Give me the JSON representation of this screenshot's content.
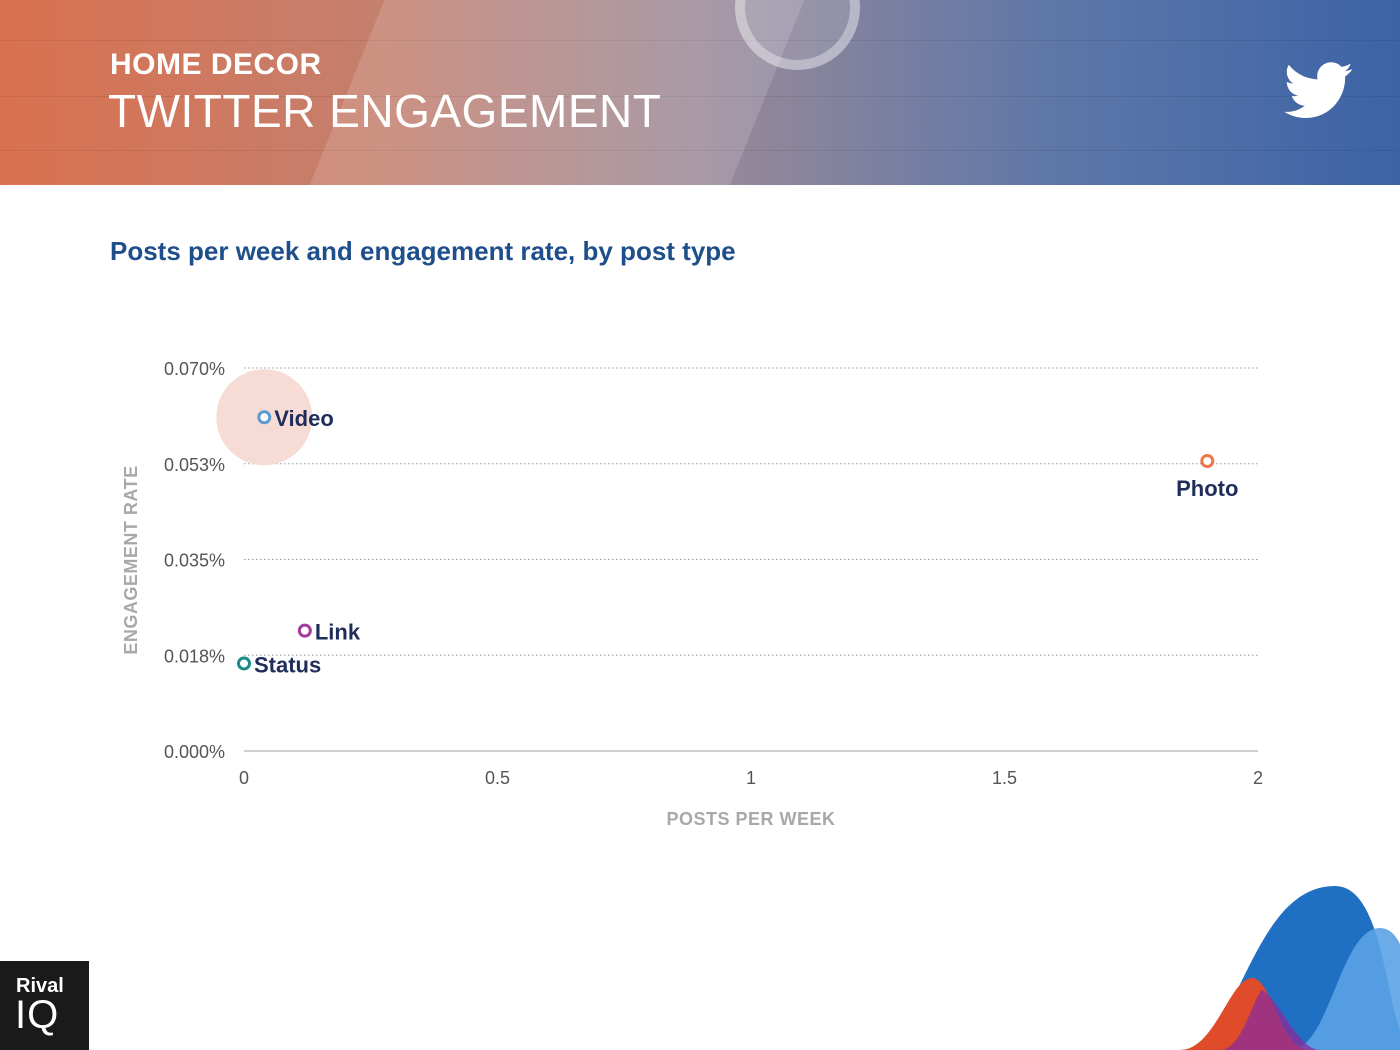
{
  "header": {
    "kicker": "HOME DECOR",
    "headline": "TWITTER ENGAGEMENT",
    "icon": "twitter-bird-icon"
  },
  "subtitle": "Posts per week and engagement rate, by post type",
  "brand": {
    "line1": "Rival",
    "line2": "IQ"
  },
  "colors": {
    "banner_left": "#d9714f",
    "banner_right": "#3c63a6",
    "subtitle": "#1f4f8a",
    "label": "#1f2d5a",
    "highlight": "#f7dcd5"
  },
  "chart_data": {
    "type": "scatter",
    "title": "",
    "xlabel": "POSTS PER WEEK",
    "ylabel": "ENGAGEMENT RATE",
    "xlim": [
      0,
      2
    ],
    "ylim": [
      0,
      0.07
    ],
    "x_ticks": [
      0,
      0.5,
      1,
      1.5,
      2
    ],
    "x_tick_labels": [
      "0",
      "0.5",
      "1",
      "1.5",
      "2"
    ],
    "y_ticks": [
      0,
      0.0175,
      0.035,
      0.0525,
      0.07
    ],
    "y_tick_labels": [
      "0.000%",
      "0.018%",
      "0.035%",
      "0.053%",
      "0.070%"
    ],
    "grid": "horizontal dotted",
    "legend": "none",
    "points": [
      {
        "label": "Video",
        "x": 0.04,
        "y": 0.061,
        "color": "#5b9bd5",
        "label_pos": "right",
        "highlight": true
      },
      {
        "label": "Photo",
        "x": 1.9,
        "y": 0.053,
        "color": "#f0744a",
        "label_pos": "below",
        "highlight": false
      },
      {
        "label": "Link",
        "x": 0.12,
        "y": 0.022,
        "color": "#a23b9a",
        "label_pos": "right",
        "highlight": false
      },
      {
        "label": "Status",
        "x": 0.0,
        "y": 0.016,
        "color": "#1a8a8a",
        "label_pos": "right",
        "highlight": false
      }
    ]
  }
}
